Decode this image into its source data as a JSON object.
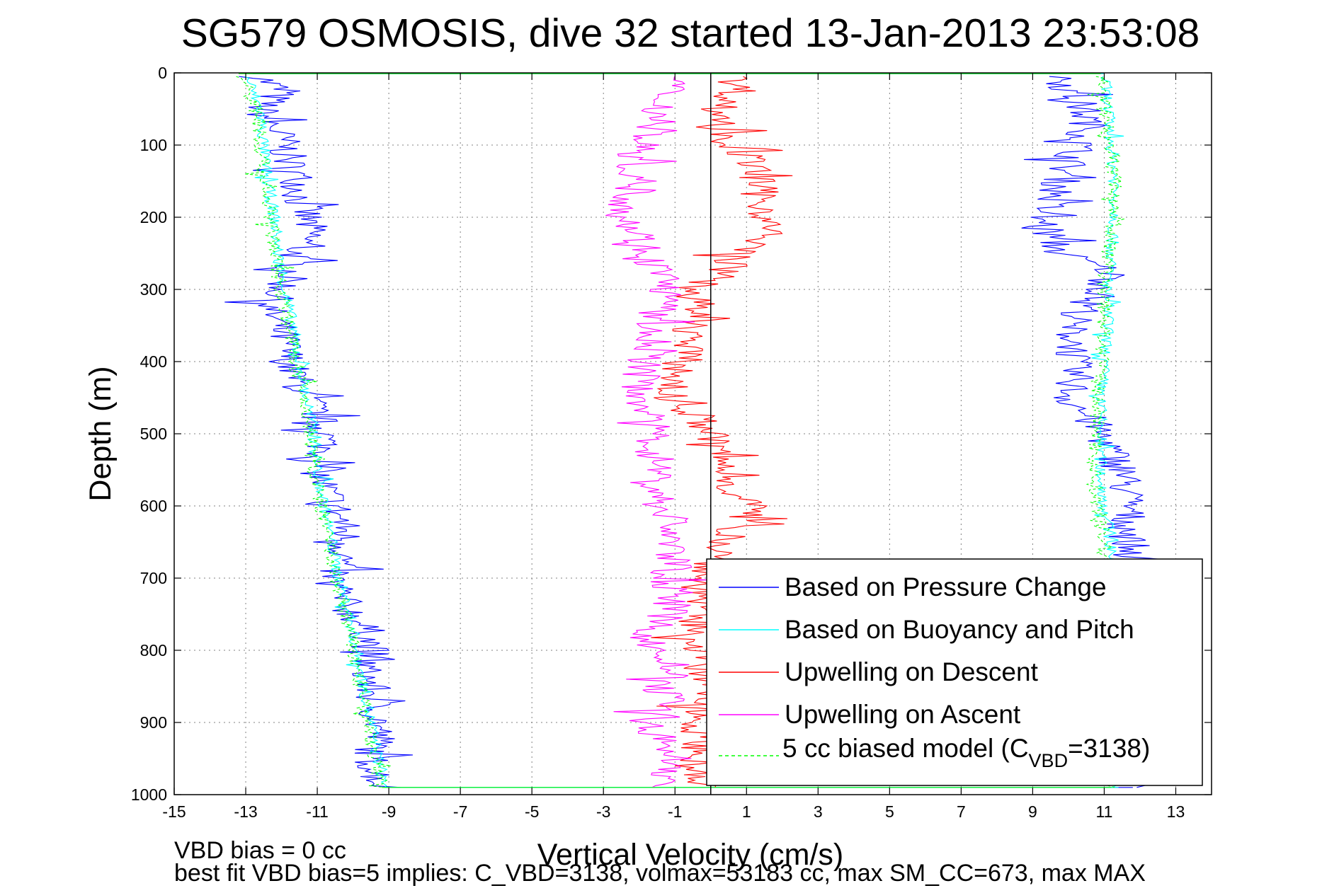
{
  "chart_data": {
    "type": "line",
    "title": "SG579 OSMOSIS, dive 32 started 13-Jan-2013 23:53:08",
    "xlabel": "Vertical Velocity (cm/s)",
    "ylabel": "Depth (m)",
    "xlim": [
      -15,
      14
    ],
    "ylim": [
      0,
      1000
    ],
    "y_reversed": true,
    "grid": true,
    "grid_style": "dotted",
    "legend_position": "lower-right",
    "xticks": [
      "-15",
      "-13",
      "-11",
      "-9",
      "-7",
      "-5",
      "-3",
      "-1",
      "1",
      "3",
      "5",
      "7",
      "9",
      "11",
      "13"
    ],
    "yticks": [
      "0",
      "100",
      "200",
      "300",
      "400",
      "500",
      "600",
      "700",
      "800",
      "900",
      "1000"
    ],
    "series": [
      {
        "name": "Based on Pressure Change",
        "color": "#0000ff",
        "style": "solid",
        "descent_depth": [
          0,
          25,
          50,
          75,
          100,
          125,
          150,
          175,
          200,
          225,
          250,
          275,
          300,
          325,
          350,
          375,
          400,
          425,
          450,
          475,
          500,
          525,
          550,
          575,
          600,
          625,
          650,
          675,
          700,
          725,
          750,
          775,
          800,
          825,
          850,
          875,
          900,
          925,
          950,
          975,
          990
        ],
        "descent_velocity": [
          -12.8,
          -12.0,
          -12.6,
          -12.2,
          -11.9,
          -11.8,
          -11.5,
          -11.5,
          -11.3,
          -11.2,
          -11.6,
          -11.7,
          -12.0,
          -12.4,
          -12.1,
          -11.9,
          -11.8,
          -11.6,
          -11.3,
          -11.0,
          -10.8,
          -10.8,
          -11.0,
          -10.8,
          -10.5,
          -10.3,
          -10.2,
          -10.3,
          -10.6,
          -10.4,
          -10.0,
          -9.6,
          -9.5,
          -9.7,
          -9.5,
          -9.4,
          -9.3,
          -9.3,
          -9.5,
          -9.3,
          -9.1
        ],
        "ascent_depth": [
          990,
          975,
          950,
          925,
          900,
          875,
          850,
          825,
          800,
          775,
          750,
          725,
          700,
          675,
          650,
          625,
          600,
          575,
          550,
          525,
          500,
          475,
          450,
          425,
          400,
          375,
          350,
          325,
          300,
          275,
          250,
          225,
          200,
          175,
          150,
          125,
          100,
          75,
          50,
          25,
          0
        ],
        "ascent_velocity": [
          11.8,
          11.8,
          11.8,
          11.8,
          11.8,
          11.8,
          11.8,
          11.8,
          11.8,
          11.8,
          11.8,
          11.8,
          11.6,
          11.8,
          11.7,
          11.6,
          11.7,
          11.6,
          11.5,
          11.2,
          10.9,
          10.5,
          10.0,
          10.2,
          10.1,
          10.2,
          10.0,
          10.5,
          11.0,
          11.2,
          9.8,
          9.5,
          9.2,
          9.6,
          9.8,
          10.0,
          10.3,
          10.6,
          10.4,
          10.0,
          9.8
        ]
      },
      {
        "name": "Based on Buoyancy and Pitch",
        "color": "#00ffff",
        "style": "solid",
        "descent_depth": [
          0,
          50,
          100,
          150,
          200,
          250,
          300,
          350,
          400,
          450,
          500,
          550,
          600,
          650,
          700,
          750,
          800,
          850,
          900,
          950,
          990
        ],
        "descent_velocity": [
          -13.0,
          -12.6,
          -12.5,
          -12.4,
          -12.2,
          -12.1,
          -11.9,
          -11.7,
          -11.5,
          -11.3,
          -11.1,
          -11.0,
          -10.8,
          -10.6,
          -10.4,
          -10.1,
          -9.9,
          -9.7,
          -9.5,
          -9.3,
          -9.1
        ],
        "ascent_depth": [
          990,
          950,
          900,
          850,
          800,
          750,
          700,
          650,
          600,
          550,
          500,
          450,
          400,
          350,
          300,
          250,
          200,
          150,
          100,
          50,
          0
        ],
        "ascent_velocity": [
          11.4,
          11.4,
          11.4,
          11.4,
          11.4,
          11.4,
          11.3,
          11.2,
          11.0,
          10.9,
          10.9,
          10.9,
          11.0,
          11.1,
          11.1,
          11.2,
          11.3,
          11.3,
          11.2,
          11.1,
          11.0
        ]
      },
      {
        "name": "Upwelling on Descent",
        "color": "#ff0000",
        "style": "solid",
        "depth": [
          0,
          25,
          50,
          75,
          100,
          125,
          150,
          175,
          200,
          225,
          250,
          275,
          300,
          325,
          350,
          375,
          400,
          425,
          450,
          475,
          500,
          525,
          550,
          575,
          600,
          625,
          650,
          675,
          700,
          725,
          750,
          775,
          800,
          825,
          850,
          875,
          900,
          925,
          950,
          975,
          990
        ],
        "velocity": [
          0.5,
          0.8,
          0.2,
          0.4,
          0.6,
          1.2,
          1.3,
          1.4,
          1.6,
          1.5,
          0.8,
          0.4,
          -0.5,
          -0.4,
          -0.5,
          -0.6,
          -0.8,
          -1.0,
          -1.2,
          -0.4,
          0.0,
          0.2,
          0.4,
          0.6,
          1.2,
          0.8,
          0.4,
          0.2,
          -0.4,
          -0.2,
          -0.4,
          -0.6,
          -0.2,
          -0.4,
          0.0,
          -0.2,
          -0.4,
          -0.2,
          -0.4,
          -0.6,
          0.0
        ]
      },
      {
        "name": "Upwelling on Ascent",
        "color": "#ff00ff",
        "style": "solid",
        "depth": [
          990,
          975,
          950,
          925,
          900,
          875,
          850,
          825,
          800,
          775,
          750,
          725,
          700,
          675,
          650,
          625,
          600,
          575,
          550,
          525,
          500,
          475,
          450,
          425,
          400,
          375,
          350,
          325,
          300,
          275,
          250,
          225,
          200,
          175,
          150,
          125,
          100,
          75,
          50,
          25,
          0
        ],
        "velocity": [
          -1.6,
          -1.2,
          -1.0,
          -1.4,
          -1.8,
          -1.2,
          -1.4,
          -1.0,
          -1.6,
          -1.8,
          -1.2,
          -1.0,
          -1.2,
          -1.0,
          -1.2,
          -1.0,
          -1.4,
          -1.6,
          -1.4,
          -1.6,
          -1.6,
          -1.8,
          -1.9,
          -2.0,
          -1.8,
          -1.6,
          -1.8,
          -1.4,
          -1.2,
          -1.4,
          -1.8,
          -2.0,
          -2.4,
          -2.3,
          -2.0,
          -2.2,
          -1.9,
          -1.6,
          -1.4,
          -1.2,
          -1.0
        ]
      },
      {
        "name": "5 cc biased model (C",
        "name_sub": "VBD",
        "name_suffix": "=3138)",
        "color": "#00ff00",
        "style": "dashed",
        "descent_depth": [
          0,
          50,
          100,
          150,
          200,
          250,
          300,
          350,
          400,
          450,
          500,
          550,
          600,
          650,
          700,
          750,
          800,
          850,
          900,
          950,
          990
        ],
        "descent_velocity": [
          -13.2,
          -12.7,
          -12.6,
          -12.5,
          -12.3,
          -12.2,
          -12.0,
          -11.8,
          -11.6,
          -11.4,
          -11.2,
          -11.1,
          -10.9,
          -10.7,
          -10.5,
          -10.2,
          -10.0,
          -9.8,
          -9.6,
          -9.4,
          -9.2
        ],
        "ascent_depth": [
          990,
          950,
          900,
          850,
          800,
          750,
          700,
          650,
          600,
          550,
          500,
          450,
          400,
          350,
          300,
          250,
          200,
          150,
          100,
          50,
          0
        ],
        "ascent_velocity": [
          11.2,
          11.2,
          11.2,
          11.2,
          11.2,
          11.1,
          11.0,
          11.0,
          10.8,
          10.7,
          10.8,
          10.8,
          10.9,
          11.0,
          11.0,
          11.1,
          11.3,
          11.3,
          11.2,
          11.0,
          10.9
        ]
      }
    ],
    "notes": [
      "VBD bias = 0 cc",
      "best fit VBD bias=5 implies: C_VBD=3138, volmax=53183 cc, max SM_CC=673, max MAX"
    ]
  }
}
